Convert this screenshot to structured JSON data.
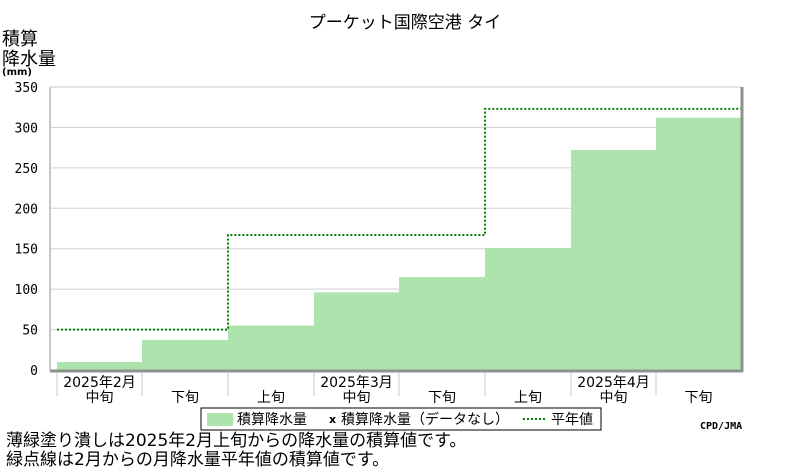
{
  "chart_data": {
    "type": "area",
    "title": "プーケット国際空港 タイ",
    "ylabel_lines": [
      "積算",
      "降水量"
    ],
    "yunit": "(mm)",
    "ylim": [
      0,
      350
    ],
    "yticks": [
      0,
      50,
      100,
      150,
      200,
      250,
      300,
      350
    ],
    "grid": true,
    "periods": [
      "2025年2月上旬",
      "2025年2月中旬",
      "2025年2月下旬",
      "2025年3月上旬",
      "2025年3月中旬",
      "2025年3月下旬",
      "2025年4月上旬",
      "2025年4月中旬",
      "2025年4月下旬"
    ],
    "x_tick_labels": [
      "中旬",
      "下旬",
      "上旬",
      "中旬",
      "下旬",
      "上旬",
      "中旬",
      "下旬"
    ],
    "month_labels": [
      {
        "label": "2025年2月",
        "period_index": 1
      },
      {
        "label": "2025年3月",
        "period_index": 4
      },
      {
        "label": "2025年4月",
        "period_index": 7
      }
    ],
    "series": [
      {
        "name": "積算降水量",
        "style": "filled-step",
        "color": "#ade3ad",
        "values": [
          null,
          10,
          37,
          55,
          96,
          115,
          151,
          272,
          312
        ]
      },
      {
        "name": "平年値",
        "style": "dotted-step",
        "color": "#008000",
        "values": [
          null,
          50,
          50,
          167,
          167,
          167,
          323,
          323,
          323
        ]
      }
    ],
    "legend": {
      "placement": "bottom-center",
      "items": [
        {
          "marker": "fill",
          "label": "積算降水量"
        },
        {
          "marker": "x",
          "label": "積算降水量（データなし）"
        },
        {
          "marker": "dotted",
          "label": "平年値"
        }
      ]
    }
  },
  "notes": [
    "薄緑塗り潰しは2025年2月上旬からの降水量の積算値です。",
    "緑点線は2月からの月降水量平年値の積算値です。"
  ],
  "credit": "CPD/JMA"
}
